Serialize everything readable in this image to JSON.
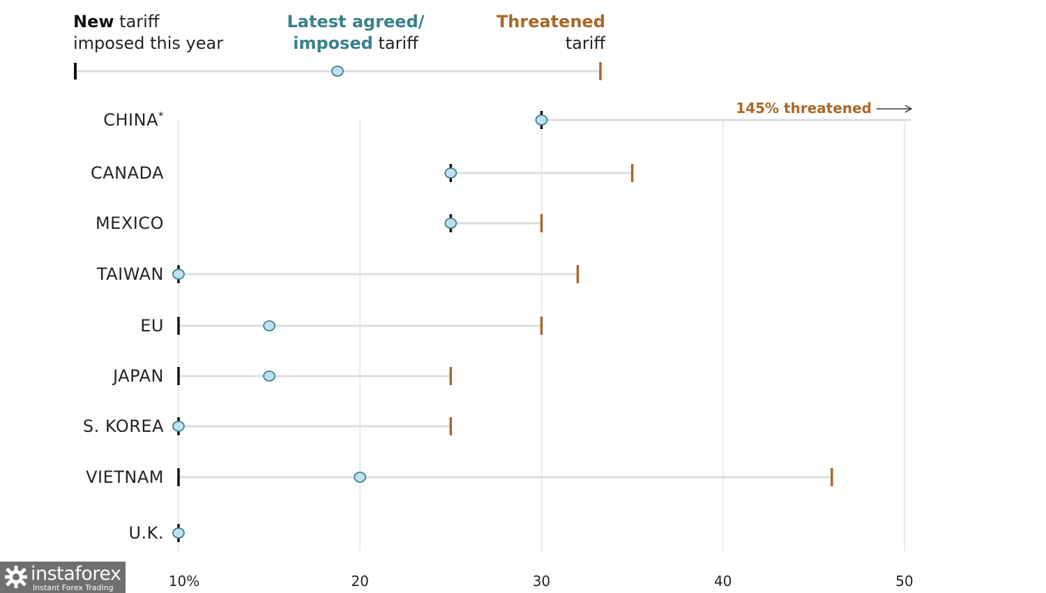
{
  "legend": {
    "new_bold": "New",
    "new_rest_line1": " tariff",
    "new_line2": "imposed this year",
    "latest_line1": "Latest agreed/",
    "latest_line2_colored": "imposed",
    "latest_line2_rest": " tariff",
    "threat_line1": "Threatened",
    "threat_line2": "tariff"
  },
  "colors": {
    "new": "#111111",
    "latest": "#3a7f8c",
    "latest_fill": "#bfe0ec",
    "threatened": "#a8672a",
    "track": "#d7dee2",
    "grid": "#e3e3e3"
  },
  "chart_data": {
    "type": "dot-range",
    "unit": "%",
    "xlim": [
      10,
      50
    ],
    "xticks": [
      10,
      20,
      30,
      40,
      50
    ],
    "xtick_labels": [
      "10%",
      "20",
      "30",
      "40",
      "50"
    ],
    "grid": true,
    "series": [
      {
        "name": "New tariff imposed this year",
        "key": "new"
      },
      {
        "name": "Latest agreed/imposed tariff",
        "key": "latest"
      },
      {
        "name": "Threatened tariff",
        "key": "threatened"
      }
    ],
    "rows": [
      {
        "country": "CHINA*",
        "new": 30,
        "latest": 30,
        "threatened": 145,
        "note": "145% threatened"
      },
      {
        "country": "CANADA",
        "new": 25,
        "latest": 25,
        "threatened": 35
      },
      {
        "country": "MEXICO",
        "new": 25,
        "latest": 25,
        "threatened": 30
      },
      {
        "country": "TAIWAN",
        "new": 10,
        "latest": 10,
        "threatened": 32
      },
      {
        "country": "EU",
        "new": 10,
        "latest": 15,
        "threatened": 30
      },
      {
        "country": "JAPAN",
        "new": 10,
        "latest": 15,
        "threatened": 25
      },
      {
        "country": "S. KOREA",
        "new": 10,
        "latest": 10,
        "threatened": 25
      },
      {
        "country": "VIETNAM",
        "new": 10,
        "latest": 20,
        "threatened": 46
      },
      {
        "country": "U.K.",
        "new": 10,
        "latest": 10,
        "threatened": null
      }
    ]
  },
  "watermark": {
    "brand": "instaforex",
    "tagline": "Instant Forex Trading"
  }
}
